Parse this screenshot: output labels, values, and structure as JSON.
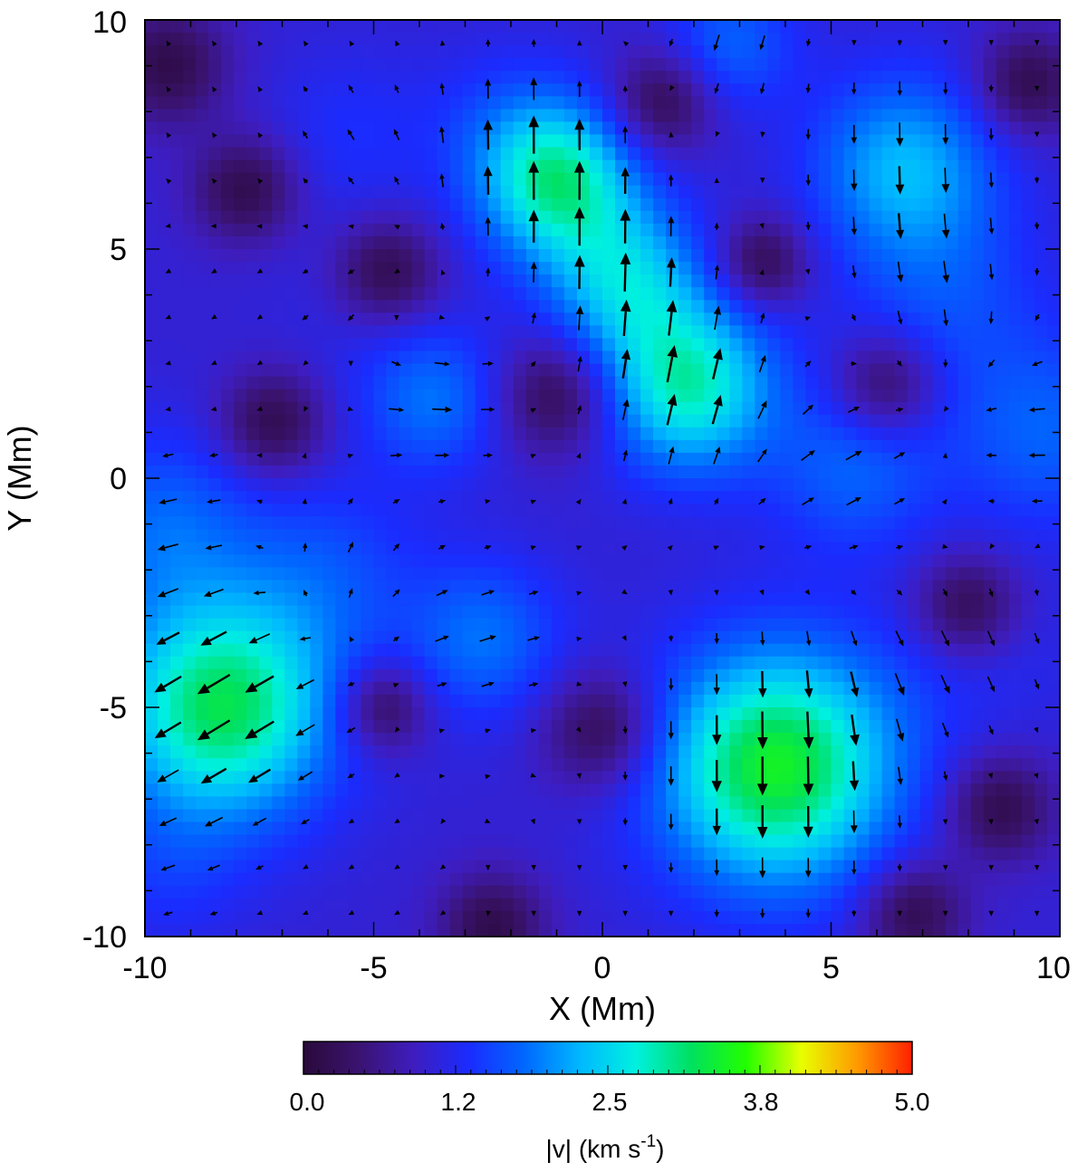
{
  "chart_data": {
    "type": "heatmap",
    "title": "",
    "xlabel": "X (Mm)",
    "ylabel": "Y (Mm)",
    "xlim": [
      -10,
      10
    ],
    "ylim": [
      -10,
      10
    ],
    "x_ticks": [
      "-10",
      "-5",
      "0",
      "5",
      "10"
    ],
    "y_ticks": [
      "-10",
      "-5",
      "0",
      "5",
      "10"
    ],
    "colorbar": {
      "label_main": "|v|  (km s",
      "label_sup": "-1",
      "label_close": ")",
      "range": [
        0.0,
        5.0
      ],
      "tick_labels": [
        "0.0",
        "1.2",
        "2.5",
        "3.8",
        "5.0"
      ],
      "colormap": [
        "#2a0a3a",
        "#3a1370",
        "#3e1dbf",
        "#1a2cff",
        "#0068ff",
        "#00b8ff",
        "#00f0e0",
        "#00e060",
        "#22ff00",
        "#e8ff00",
        "#ff9a00",
        "#ff2000"
      ]
    },
    "grid": false,
    "vector_scale_kms_per_Mm": 1.0,
    "speed_peaks": [
      {
        "x": -8.3,
        "y": -5.0,
        "amplitude": 3.1,
        "width": 1.7
      },
      {
        "x": 3.8,
        "y": -6.3,
        "amplitude": 3.3,
        "width": 1.8
      },
      {
        "x": -1.0,
        "y": 6.5,
        "amplitude": 2.8,
        "width": 1.2
      },
      {
        "x": 1.9,
        "y": 2.0,
        "amplitude": 2.7,
        "width": 1.3
      },
      {
        "x": 0.5,
        "y": 4.3,
        "amplitude": 2.2,
        "width": 1.2
      },
      {
        "x": 6.6,
        "y": 6.8,
        "amplitude": 2.1,
        "width": 1.4
      },
      {
        "x": -3.7,
        "y": 1.7,
        "amplitude": 1.7,
        "width": 1.1
      },
      {
        "x": -2.6,
        "y": -3.5,
        "amplitude": 1.7,
        "width": 1.2
      },
      {
        "x": 5.5,
        "y": 0.2,
        "amplitude": 1.6,
        "width": 1.3
      },
      {
        "x": 9.7,
        "y": 1.0,
        "amplitude": 1.6,
        "width": 1.5
      },
      {
        "x": -9.6,
        "y": -1.0,
        "amplitude": 1.6,
        "width": 1.4
      },
      {
        "x": -6.0,
        "y": -2.0,
        "amplitude": 1.4,
        "width": 1.4
      },
      {
        "x": -5.5,
        "y": 7.5,
        "amplitude": 1.2,
        "width": 1.3
      },
      {
        "x": -2.2,
        "y": 7.8,
        "amplitude": 1.2,
        "width": 1.2
      },
      {
        "x": 2.8,
        "y": 9.5,
        "amplitude": 1.6,
        "width": 1.0
      },
      {
        "x": -9.5,
        "y": -8.6,
        "amplitude": 1.2,
        "width": 1.2
      },
      {
        "x": 7.5,
        "y": 4.0,
        "amplitude": 1.4,
        "width": 1.5
      },
      {
        "x": 8.7,
        "y": -3.8,
        "amplitude": 1.1,
        "width": 1.3
      },
      {
        "x": -5.5,
        "y": 3.5,
        "amplitude": 1.0,
        "width": 1.4
      },
      {
        "x": 6.5,
        "y": -4.5,
        "amplitude": 1.0,
        "width": 1.2
      }
    ],
    "speed_lows": [
      {
        "x": -7.8,
        "y": 6.3,
        "width": 0.8
      },
      {
        "x": -7.2,
        "y": 1.2,
        "width": 0.8
      },
      {
        "x": -4.7,
        "y": 4.5,
        "width": 0.8
      },
      {
        "x": -1.0,
        "y": 1.8,
        "width": 0.9
      },
      {
        "x": 3.5,
        "y": 4.7,
        "width": 0.7
      },
      {
        "x": 6.2,
        "y": 2.0,
        "width": 0.8
      },
      {
        "x": 8.0,
        "y": -2.8,
        "width": 0.8
      },
      {
        "x": 8.7,
        "y": -7.2,
        "width": 0.8
      },
      {
        "x": -4.8,
        "y": -5.0,
        "width": 0.7
      },
      {
        "x": 0.0,
        "y": -5.5,
        "width": 0.9
      },
      {
        "x": 1.3,
        "y": 8.2,
        "width": 0.8
      },
      {
        "x": -2.4,
        "y": -9.8,
        "width": 0.8
      },
      {
        "x": 6.8,
        "y": -9.5,
        "width": 0.8
      },
      {
        "x": 9.3,
        "y": 8.6,
        "width": 0.8
      },
      {
        "x": -9.5,
        "y": 9.0,
        "width": 0.9
      }
    ],
    "flow_patches": [
      {
        "x": -8.3,
        "y": -5.0,
        "vx": -2.6,
        "vy": -1.6,
        "width": 1.8
      },
      {
        "x": 3.8,
        "y": -6.3,
        "vx": 0.0,
        "vy": -3.2,
        "width": 1.9
      },
      {
        "x": -1.0,
        "y": 6.5,
        "vx": 0.0,
        "vy": 2.7,
        "width": 1.4
      },
      {
        "x": 1.9,
        "y": 2.0,
        "vx": 0.6,
        "vy": 2.5,
        "width": 1.4
      },
      {
        "x": 0.5,
        "y": 4.3,
        "vx": 0.0,
        "vy": 2.2,
        "width": 1.3
      },
      {
        "x": 6.6,
        "y": 6.8,
        "vx": 0.0,
        "vy": -2.0,
        "width": 1.6
      },
      {
        "x": -3.7,
        "y": 1.7,
        "vx": 1.7,
        "vy": 0.0,
        "width": 1.3
      },
      {
        "x": -2.6,
        "y": -3.5,
        "vx": 1.3,
        "vy": 0.4,
        "width": 1.4
      },
      {
        "x": 5.5,
        "y": 0.2,
        "vx": 1.3,
        "vy": 0.7,
        "width": 1.5
      },
      {
        "x": 9.7,
        "y": 1.0,
        "vx": -1.4,
        "vy": 0.0,
        "width": 1.6
      },
      {
        "x": -9.6,
        "y": -1.0,
        "vx": -1.4,
        "vy": -0.3,
        "width": 1.5
      },
      {
        "x": -6.0,
        "y": -2.0,
        "vx": 0.5,
        "vy": 1.0,
        "width": 1.4
      },
      {
        "x": -5.5,
        "y": 7.5,
        "vx": -0.5,
        "vy": 0.8,
        "width": 1.3
      },
      {
        "x": 2.8,
        "y": 9.5,
        "vx": -0.4,
        "vy": -1.3,
        "width": 1.1
      },
      {
        "x": -9.5,
        "y": -8.6,
        "vx": -0.8,
        "vy": -0.2,
        "width": 1.3
      },
      {
        "x": 7.5,
        "y": 4.0,
        "vx": 0.3,
        "vy": -1.2,
        "width": 1.5
      },
      {
        "x": 8.7,
        "y": -3.8,
        "vx": 0.4,
        "vy": -1.0,
        "width": 1.3
      },
      {
        "x": -5.5,
        "y": 3.5,
        "vx": -0.7,
        "vy": -0.5,
        "width": 1.4
      },
      {
        "x": 6.5,
        "y": -4.5,
        "vx": 0.6,
        "vy": -0.8,
        "width": 1.3
      },
      {
        "x": -2.2,
        "y": 7.8,
        "vx": 0.0,
        "vy": 1.2,
        "width": 1.2
      }
    ]
  }
}
